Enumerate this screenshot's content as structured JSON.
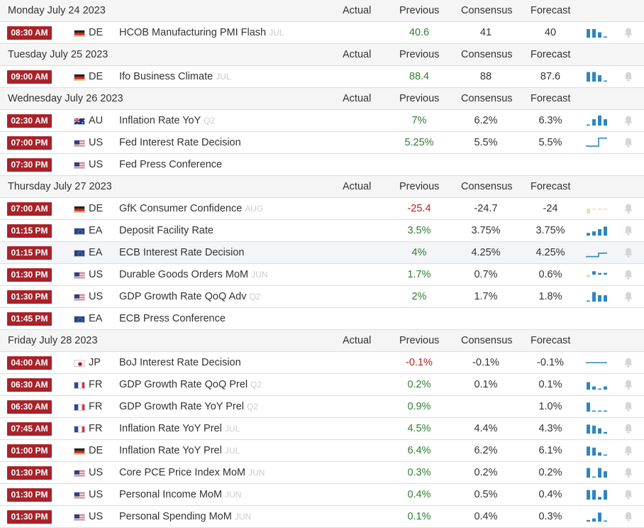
{
  "headers": {
    "actual": "Actual",
    "previous": "Previous",
    "consensus": "Consensus",
    "forecast": "Forecast"
  },
  "colors": {
    "time_badge": "#a9222a",
    "positive": "#2e7d32",
    "negative": "#b71c1c",
    "spark": "#2e86c1",
    "spark_neg": "#f9d8b0",
    "day_bg": "#f5f5f5"
  },
  "days": [
    {
      "date": "Monday July 24 2023",
      "events": [
        {
          "time": "08:30 AM",
          "flag": "de",
          "country": "DE",
          "event": "HCOB Manufacturing PMI Flash",
          "ref": "JUL",
          "actual": "",
          "previous": "40.6",
          "previous_sign": "pos",
          "consensus": "41",
          "forecast": "40",
          "spark": [
            0.8,
            0.8,
            0.5,
            0.1
          ],
          "spark_type": "bars",
          "icon": "bell-icon"
        }
      ]
    },
    {
      "date": "Tuesday July 25 2023",
      "events": [
        {
          "time": "09:00 AM",
          "flag": "de",
          "country": "DE",
          "event": "Ifo Business Climate",
          "ref": "JUL",
          "actual": "",
          "previous": "88.4",
          "previous_sign": "pos",
          "consensus": "88",
          "forecast": "87.6",
          "spark": [
            0.9,
            0.9,
            0.6,
            0.1
          ],
          "spark_type": "bars",
          "icon": "bell-icon"
        }
      ]
    },
    {
      "date": "Wednesday July 26 2023",
      "events": [
        {
          "time": "02:30 AM",
          "flag": "au",
          "country": "AU",
          "event": "Inflation Rate YoY",
          "ref": "Q2",
          "actual": "",
          "previous": "7%",
          "previous_sign": "pos",
          "consensus": "6.2%",
          "forecast": "6.3%",
          "spark": [
            0.1,
            0.6,
            0.95,
            0.6
          ],
          "spark_type": "bars",
          "icon": "bell-icon"
        },
        {
          "time": "07:00 PM",
          "flag": "us",
          "country": "US",
          "event": "Fed Interest Rate Decision",
          "ref": "",
          "actual": "",
          "previous": "5.25%",
          "previous_sign": "pos",
          "consensus": "5.5%",
          "forecast": "5.5%",
          "spark": [
            0.15,
            0.15,
            0.15,
            0.95,
            0.95
          ],
          "spark_type": "step",
          "icon": "bell-icon"
        },
        {
          "time": "07:30 PM",
          "flag": "us",
          "country": "US",
          "event": "Fed Press Conference",
          "ref": "",
          "actual": "",
          "previous": "",
          "previous_sign": "pos",
          "consensus": "",
          "forecast": "",
          "spark": [],
          "spark_type": "none",
          "icon": ""
        }
      ]
    },
    {
      "date": "Thursday July 27 2023",
      "events": [
        {
          "time": "07:00 AM",
          "flag": "de",
          "country": "DE",
          "event": "GfK Consumer Confidence",
          "ref": "AUG",
          "actual": "",
          "previous": "-25.4",
          "previous_sign": "neg",
          "consensus": "-24.7",
          "forecast": "-24",
          "spark": [
            -0.85,
            -0.15,
            -0.2,
            -0.15
          ],
          "spark_type": "bars",
          "icon": "bell-icon"
        },
        {
          "time": "01:15 PM",
          "flag": "eu",
          "country": "EA",
          "event": "Deposit Facility Rate",
          "ref": "",
          "actual": "",
          "previous": "3.5%",
          "previous_sign": "pos",
          "consensus": "3.75%",
          "forecast": "3.75%",
          "spark": [
            0.25,
            0.4,
            0.6,
            0.85
          ],
          "spark_type": "bars",
          "icon": "bell-icon"
        },
        {
          "time": "01:15 PM",
          "flag": "eu",
          "country": "EA",
          "event": "ECB Interest Rate Decision",
          "ref": "",
          "actual": "",
          "previous": "4%",
          "previous_sign": "pos",
          "consensus": "4.25%",
          "forecast": "4.25%",
          "spark": [
            0.1,
            0.1,
            0.1,
            0.45,
            0.45
          ],
          "spark_type": "step",
          "icon": "bell-icon",
          "highlight": true
        },
        {
          "time": "01:30 PM",
          "flag": "us",
          "country": "US",
          "event": "Durable Goods Orders MoM",
          "ref": "JUN",
          "actual": "",
          "previous": "1.7%",
          "previous_sign": "pos",
          "consensus": "0.7%",
          "forecast": "0.6%",
          "spark": [
            -0.5,
            0.6,
            0.3,
            0.3
          ],
          "spark_type": "bars",
          "icon": "bell-icon"
        },
        {
          "time": "01:30 PM",
          "flag": "us",
          "country": "US",
          "event": "GDP Growth Rate QoQ Adv",
          "ref": "Q2",
          "actual": "",
          "previous": "2%",
          "previous_sign": "pos",
          "consensus": "1.7%",
          "forecast": "1.8%",
          "spark": [
            0.1,
            0.9,
            0.6,
            0.6
          ],
          "spark_type": "bars",
          "icon": "bell-icon"
        },
        {
          "time": "01:45 PM",
          "flag": "eu",
          "country": "EA",
          "event": "ECB Press Conference",
          "ref": "",
          "actual": "",
          "previous": "",
          "previous_sign": "pos",
          "consensus": "",
          "forecast": "",
          "spark": [],
          "spark_type": "none",
          "icon": ""
        }
      ]
    },
    {
      "date": "Friday July 28 2023",
      "events": [
        {
          "time": "04:00 AM",
          "flag": "jp",
          "country": "JP",
          "event": "BoJ Interest Rate Decision",
          "ref": "",
          "actual": "",
          "previous": "-0.1%",
          "previous_sign": "neg",
          "consensus": "-0.1%",
          "forecast": "-0.1%",
          "spark": [
            0.5,
            0.5,
            0.5,
            0.5,
            0.5
          ],
          "spark_type": "flat",
          "icon": "bell-icon"
        },
        {
          "time": "06:30 AM",
          "flag": "fr",
          "country": "FR",
          "event": "GDP Growth Rate QoQ Prel",
          "ref": "Q2",
          "actual": "",
          "previous": "0.2%",
          "previous_sign": "pos",
          "consensus": "0.1%",
          "forecast": "0.1%",
          "spark": [
            0.7,
            0.3,
            0.05,
            0.3
          ],
          "spark_type": "bars",
          "icon": "bell-icon"
        },
        {
          "time": "06:30 AM",
          "flag": "fr",
          "country": "FR",
          "event": "GDP Growth Rate YoY Prel",
          "ref": "Q2",
          "actual": "",
          "previous": "0.9%",
          "previous_sign": "pos",
          "consensus": "",
          "forecast": "1.0%",
          "spark": [
            0.85,
            0.08,
            0.08,
            0.08
          ],
          "spark_type": "bars",
          "icon": "bell-icon"
        },
        {
          "time": "07:45 AM",
          "flag": "fr",
          "country": "FR",
          "event": "Inflation Rate YoY Prel",
          "ref": "JUL",
          "actual": "",
          "previous": "4.5%",
          "previous_sign": "pos",
          "consensus": "4.4%",
          "forecast": "4.3%",
          "spark": [
            0.85,
            0.75,
            0.5,
            0.15
          ],
          "spark_type": "bars",
          "icon": "bell-icon"
        },
        {
          "time": "01:00 PM",
          "flag": "de",
          "country": "DE",
          "event": "Inflation Rate YoY Prel",
          "ref": "JUL",
          "actual": "",
          "previous": "6.4%",
          "previous_sign": "pos",
          "consensus": "6.2%",
          "forecast": "6.1%",
          "spark": [
            0.85,
            0.75,
            0.3,
            0.1
          ],
          "spark_type": "bars",
          "icon": "bell-icon"
        },
        {
          "time": "01:30 PM",
          "flag": "us",
          "country": "US",
          "event": "Core PCE Price Index MoM",
          "ref": "JUN",
          "actual": "",
          "previous": "0.3%",
          "previous_sign": "pos",
          "consensus": "0.2%",
          "forecast": "0.2%",
          "spark": [
            0.9,
            0.1,
            0.9,
            0.6
          ],
          "spark_type": "bars",
          "icon": "bell-icon"
        },
        {
          "time": "01:30 PM",
          "flag": "us",
          "country": "US",
          "event": "Personal Income MoM",
          "ref": "JUN",
          "actual": "",
          "previous": "0.4%",
          "previous_sign": "pos",
          "consensus": "0.5%",
          "forecast": "0.4%",
          "spark": [
            0.9,
            0.9,
            0.25,
            0.9
          ],
          "spark_type": "bars",
          "icon": "bell-icon"
        },
        {
          "time": "01:30 PM",
          "flag": "us",
          "country": "US",
          "event": "Personal Spending MoM",
          "ref": "JUN",
          "actual": "",
          "previous": "0.1%",
          "previous_sign": "pos",
          "consensus": "0.4%",
          "forecast": "0.3%",
          "spark": [
            0.15,
            0.3,
            0.85,
            0.1
          ],
          "spark_type": "bars",
          "icon": "bell-icon"
        }
      ]
    }
  ]
}
